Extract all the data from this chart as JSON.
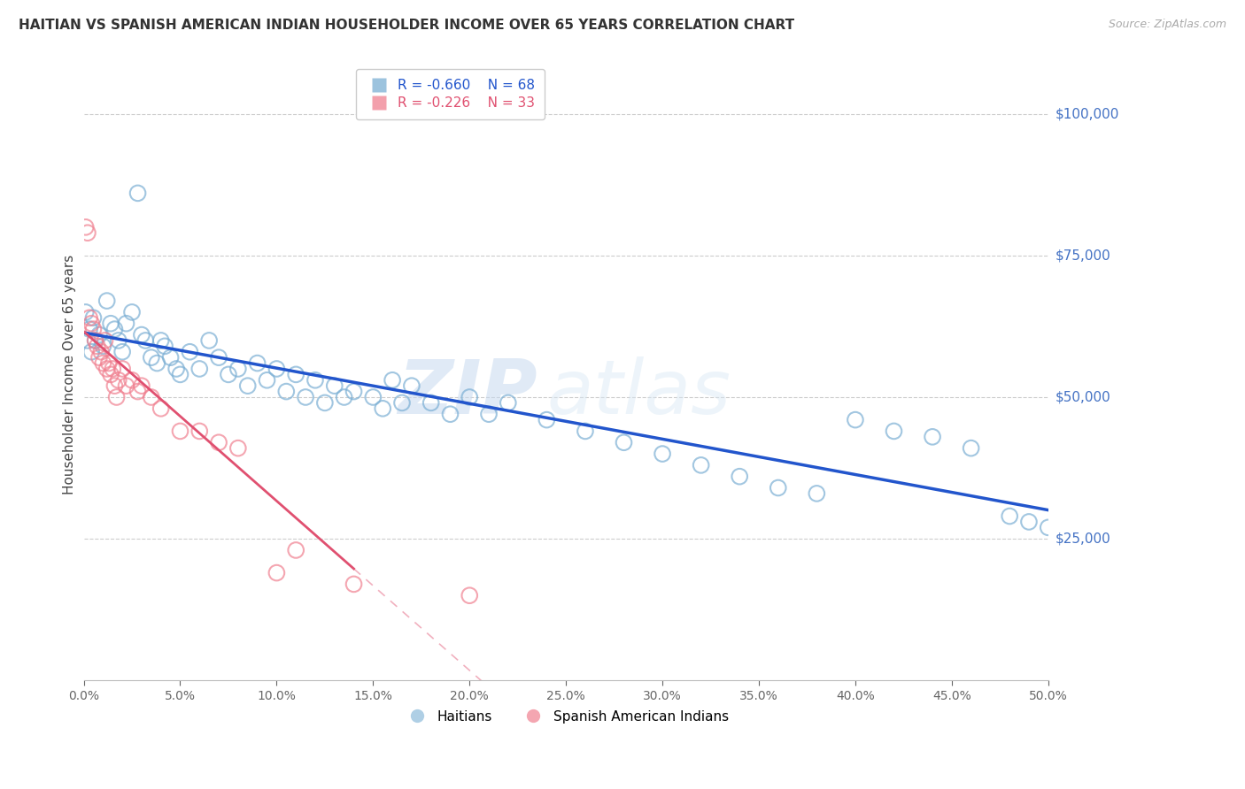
{
  "title": "HAITIAN VS SPANISH AMERICAN INDIAN HOUSEHOLDER INCOME OVER 65 YEARS CORRELATION CHART",
  "source": "Source: ZipAtlas.com",
  "ylabel": "Householder Income Over 65 years",
  "r_haitians": -0.66,
  "n_haitians": 68,
  "r_spanish": -0.226,
  "n_spanish": 33,
  "watermark_zip": "ZIP",
  "watermark_atlas": "atlas",
  "blue_dot_color": "#7bafd4",
  "pink_dot_color": "#f08090",
  "blue_line_color": "#2255cc",
  "pink_line_color": "#e05070",
  "ytick_labels": [
    "$25,000",
    "$50,000",
    "$75,000",
    "$100,000"
  ],
  "ytick_values": [
    25000,
    50000,
    75000,
    100000
  ],
  "ytick_color": "#4472c4",
  "xmin": 0.0,
  "xmax": 0.5,
  "ymin": 0,
  "ymax": 108000,
  "haitians_x": [
    0.001,
    0.002,
    0.003,
    0.004,
    0.005,
    0.006,
    0.008,
    0.01,
    0.012,
    0.014,
    0.016,
    0.018,
    0.02,
    0.022,
    0.025,
    0.028,
    0.03,
    0.032,
    0.035,
    0.038,
    0.04,
    0.042,
    0.045,
    0.048,
    0.05,
    0.055,
    0.06,
    0.065,
    0.07,
    0.075,
    0.08,
    0.085,
    0.09,
    0.095,
    0.1,
    0.105,
    0.11,
    0.115,
    0.12,
    0.125,
    0.13,
    0.135,
    0.14,
    0.15,
    0.155,
    0.16,
    0.165,
    0.17,
    0.18,
    0.19,
    0.2,
    0.21,
    0.22,
    0.24,
    0.26,
    0.28,
    0.3,
    0.32,
    0.34,
    0.36,
    0.38,
    0.4,
    0.42,
    0.44,
    0.46,
    0.48,
    0.49,
    0.5
  ],
  "haitians_y": [
    65000,
    60000,
    62000,
    58000,
    64000,
    60000,
    61000,
    59000,
    67000,
    63000,
    62000,
    60000,
    58000,
    63000,
    65000,
    86000,
    61000,
    60000,
    57000,
    56000,
    60000,
    59000,
    57000,
    55000,
    54000,
    58000,
    55000,
    60000,
    57000,
    54000,
    55000,
    52000,
    56000,
    53000,
    55000,
    51000,
    54000,
    50000,
    53000,
    49000,
    52000,
    50000,
    51000,
    50000,
    48000,
    53000,
    49000,
    52000,
    49000,
    47000,
    50000,
    47000,
    49000,
    46000,
    44000,
    42000,
    40000,
    38000,
    36000,
    34000,
    33000,
    46000,
    44000,
    43000,
    41000,
    29000,
    28000,
    27000
  ],
  "spanish_x": [
    0.001,
    0.002,
    0.003,
    0.004,
    0.005,
    0.006,
    0.007,
    0.008,
    0.009,
    0.01,
    0.011,
    0.012,
    0.013,
    0.014,
    0.015,
    0.016,
    0.017,
    0.018,
    0.02,
    0.022,
    0.025,
    0.028,
    0.03,
    0.035,
    0.04,
    0.05,
    0.06,
    0.07,
    0.08,
    0.1,
    0.11,
    0.14,
    0.2
  ],
  "spanish_y": [
    80000,
    79000,
    64000,
    63000,
    62000,
    60000,
    59000,
    57000,
    58000,
    56000,
    60000,
    55000,
    56000,
    54000,
    55000,
    52000,
    50000,
    53000,
    55000,
    52000,
    53000,
    51000,
    52000,
    50000,
    48000,
    44000,
    44000,
    42000,
    41000,
    19000,
    23000,
    17000,
    15000
  ]
}
